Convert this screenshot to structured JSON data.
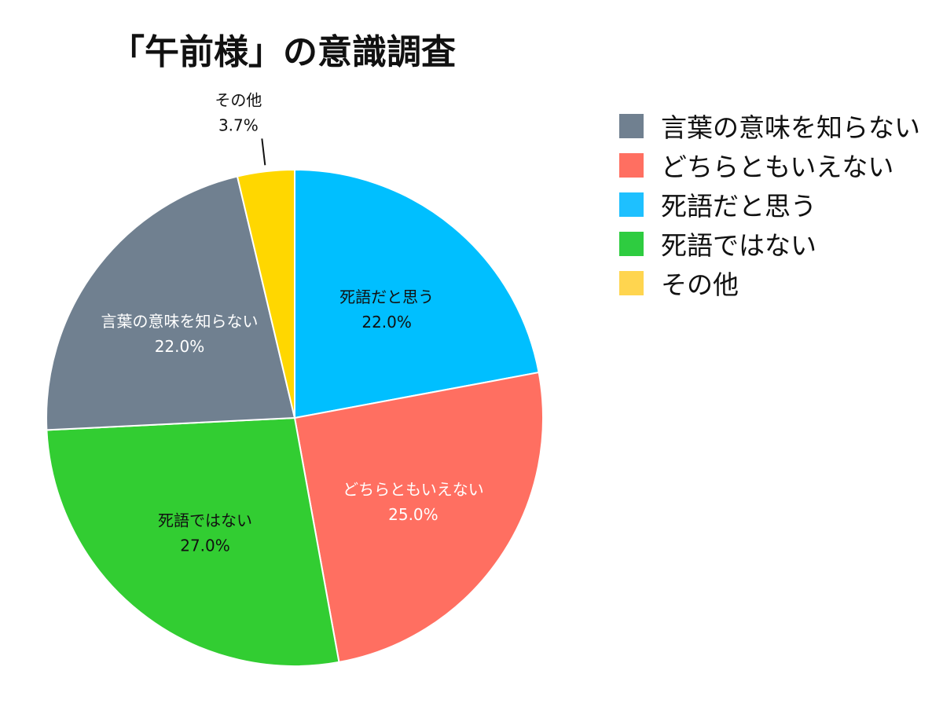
{
  "title": "「午前様」の意識調査",
  "chart_data": {
    "type": "pie",
    "title": "「午前様」の意識調査",
    "legend_position": "right",
    "start": "top, clockwise",
    "slices": [
      {
        "label": "死語だと思う",
        "value": 22.0,
        "display": "22.0%",
        "color": "#00BFFF",
        "text_color": "#111111"
      },
      {
        "label": "どちらともいえない",
        "value": 25.0,
        "display": "25.0%",
        "color": "#FF6F61",
        "text_color": "#ffffff"
      },
      {
        "label": "死語ではない",
        "value": 27.0,
        "display": "27.0%",
        "color": "#32CD32",
        "text_color": "#111111"
      },
      {
        "label": "言葉の意味を知らない",
        "value": 22.0,
        "display": "22.0%",
        "color": "#708090",
        "text_color": "#ffffff"
      },
      {
        "label": "その他",
        "value": 3.7,
        "display": "3.7%",
        "color": "#FFD700",
        "text_color": "#111111",
        "label_outside": true
      }
    ],
    "legend": [
      {
        "label": "言葉の意味を知らない",
        "color": "#708090"
      },
      {
        "label": "どちらともいえない",
        "color": "#FF6F61"
      },
      {
        "label": "死語だと思う",
        "color": "#1EC0FF"
      },
      {
        "label": "死語ではない",
        "color": "#2ECC40"
      },
      {
        "label": "その他",
        "color": "#FFD54F"
      }
    ]
  }
}
